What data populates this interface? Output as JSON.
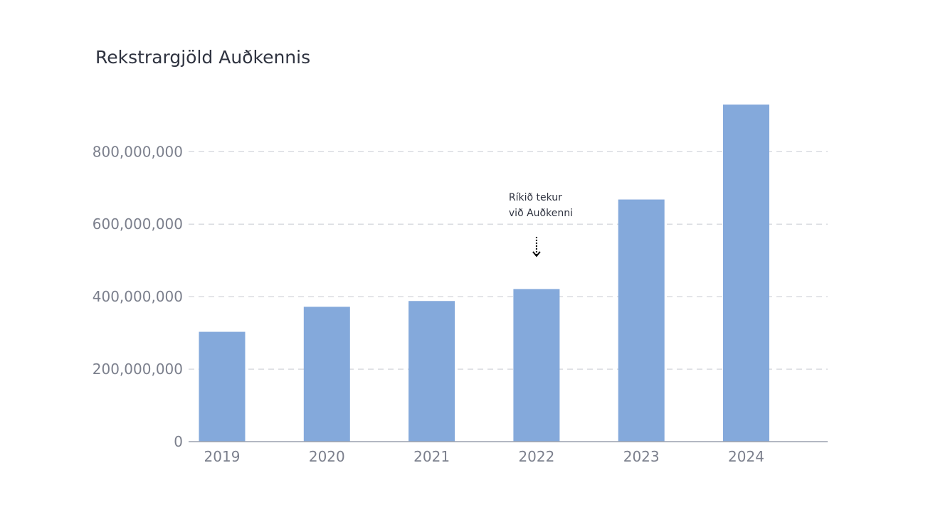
{
  "chart_data": {
    "type": "bar",
    "title": "Rekstrargjöld Auðkennis",
    "categories": [
      "2019",
      "2020",
      "2021",
      "2022",
      "2023",
      "2024"
    ],
    "values": [
      303000000,
      372000000,
      388000000,
      421000000,
      668000000,
      930000000
    ],
    "xlabel": "",
    "ylabel": "",
    "ylim": [
      0,
      930000000
    ],
    "yticks": [
      0,
      200000000,
      400000000,
      600000000,
      800000000
    ],
    "ytick_labels": [
      "0",
      "200,000,000",
      "400,000,000",
      "600,000,000",
      "800,000,000"
    ],
    "grid": true,
    "legend": "none",
    "annotation": {
      "lines": [
        "Ríkið tekur",
        "við Auðkenni"
      ],
      "category": "2022"
    },
    "colors": {
      "bar": "#84a9db",
      "grid": "#d9dbe0",
      "axis": "#9aa0ad",
      "tick_text": "#7b7f8c",
      "title_text": "#2f3340",
      "annotation": "#000000"
    }
  }
}
